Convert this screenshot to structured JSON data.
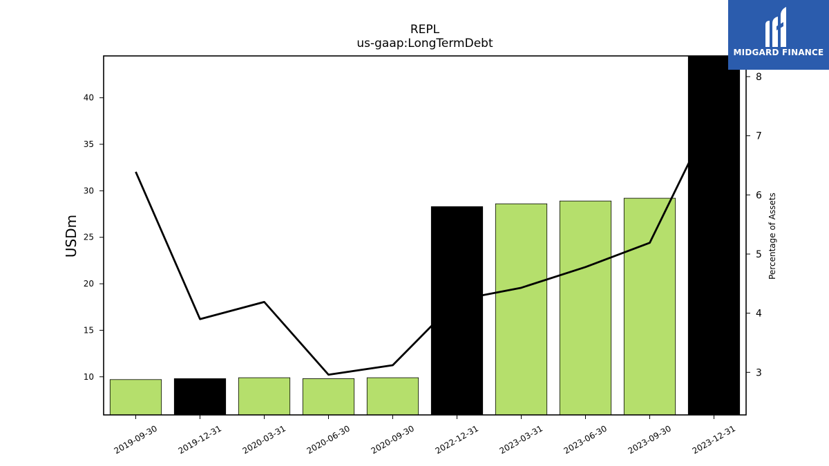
{
  "chart_data": {
    "type": "bar",
    "title": "REPL",
    "subtitle": "us-gaap:LongTermDebt",
    "ylabel": "USDm",
    "y2label": "Percentage of Assets",
    "ylim": [
      5.9,
      44.5
    ],
    "y2lim": [
      2.28,
      8.35
    ],
    "yticks": [
      10,
      15,
      20,
      25,
      30,
      35,
      40
    ],
    "y2ticks": [
      3,
      4,
      5,
      6,
      7,
      8
    ],
    "categories": [
      "2019-09-30",
      "2019-12-31",
      "2020-03-31",
      "2020-06-30",
      "2020-09-30",
      "2022-12-31",
      "2023-03-31",
      "2023-06-30",
      "2023-09-30",
      "2023-12-31"
    ],
    "series": [
      {
        "type": "bar",
        "axis": "left",
        "values": [
          9.7,
          9.8,
          9.9,
          9.8,
          9.9,
          28.3,
          28.6,
          28.9,
          29.2,
          44.5
        ],
        "colors": [
          "#b5df6c",
          "#000000",
          "#b5df6c",
          "#b5df6c",
          "#b5df6c",
          "#000000",
          "#b5df6c",
          "#b5df6c",
          "#b5df6c",
          "#000000"
        ]
      },
      {
        "type": "line",
        "axis": "right",
        "values": [
          6.39,
          3.9,
          4.19,
          2.96,
          3.12,
          4.22,
          4.43,
          4.78,
          5.19,
          7.41
        ],
        "color": "#000000"
      }
    ],
    "grid": false,
    "legend": "none"
  },
  "branding": {
    "name": "MIDGARD FINANCE",
    "background": "#2b5cad",
    "icon": "midgard-logo-icon"
  }
}
